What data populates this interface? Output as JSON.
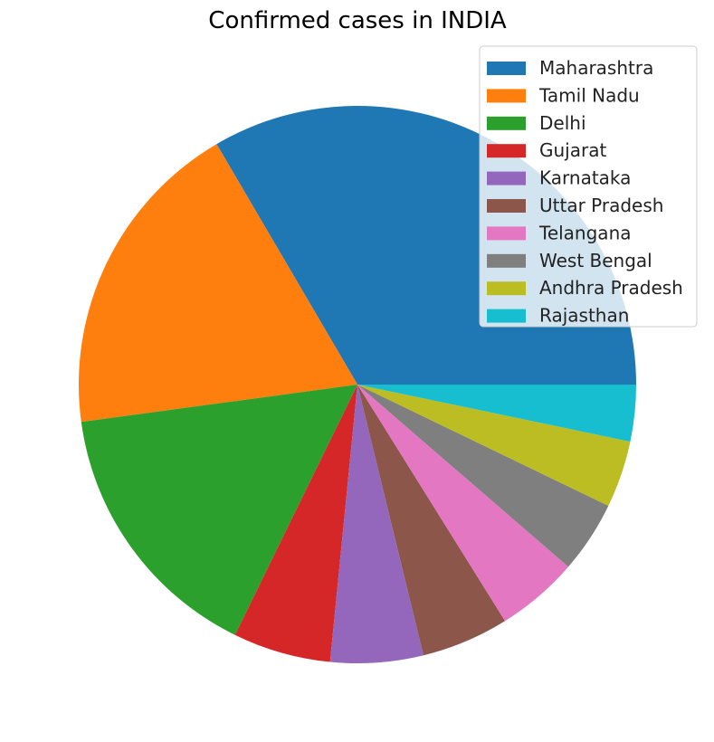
{
  "chart_data": {
    "type": "pie",
    "title": "Confirmed cases in INDIA",
    "start_angle_deg": 0,
    "direction": "counterclockwise",
    "legend_position": "top-right",
    "slices": [
      {
        "label": "Maharashtra",
        "value": 33.6,
        "color": "#1f77b4"
      },
      {
        "label": "Tamil Nadu",
        "value": 18.8,
        "color": "#ff7f0e"
      },
      {
        "label": "Delhi",
        "value": 15.7,
        "color": "#2ca02c"
      },
      {
        "label": "Gujarat",
        "value": 5.7,
        "color": "#d62728"
      },
      {
        "label": "Karnataka",
        "value": 5.4,
        "color": "#9467bd"
      },
      {
        "label": "Uttar Pradesh",
        "value": 5.1,
        "color": "#8c564b"
      },
      {
        "label": "Telangana",
        "value": 4.8,
        "color": "#e377c2"
      },
      {
        "label": "West Bengal",
        "value": 4.2,
        "color": "#7f7f7f"
      },
      {
        "label": "Andhra Pradesh",
        "value": 3.9,
        "color": "#bcbd22"
      },
      {
        "label": "Rajasthan",
        "value": 3.3,
        "color": "#17becf"
      }
    ]
  }
}
